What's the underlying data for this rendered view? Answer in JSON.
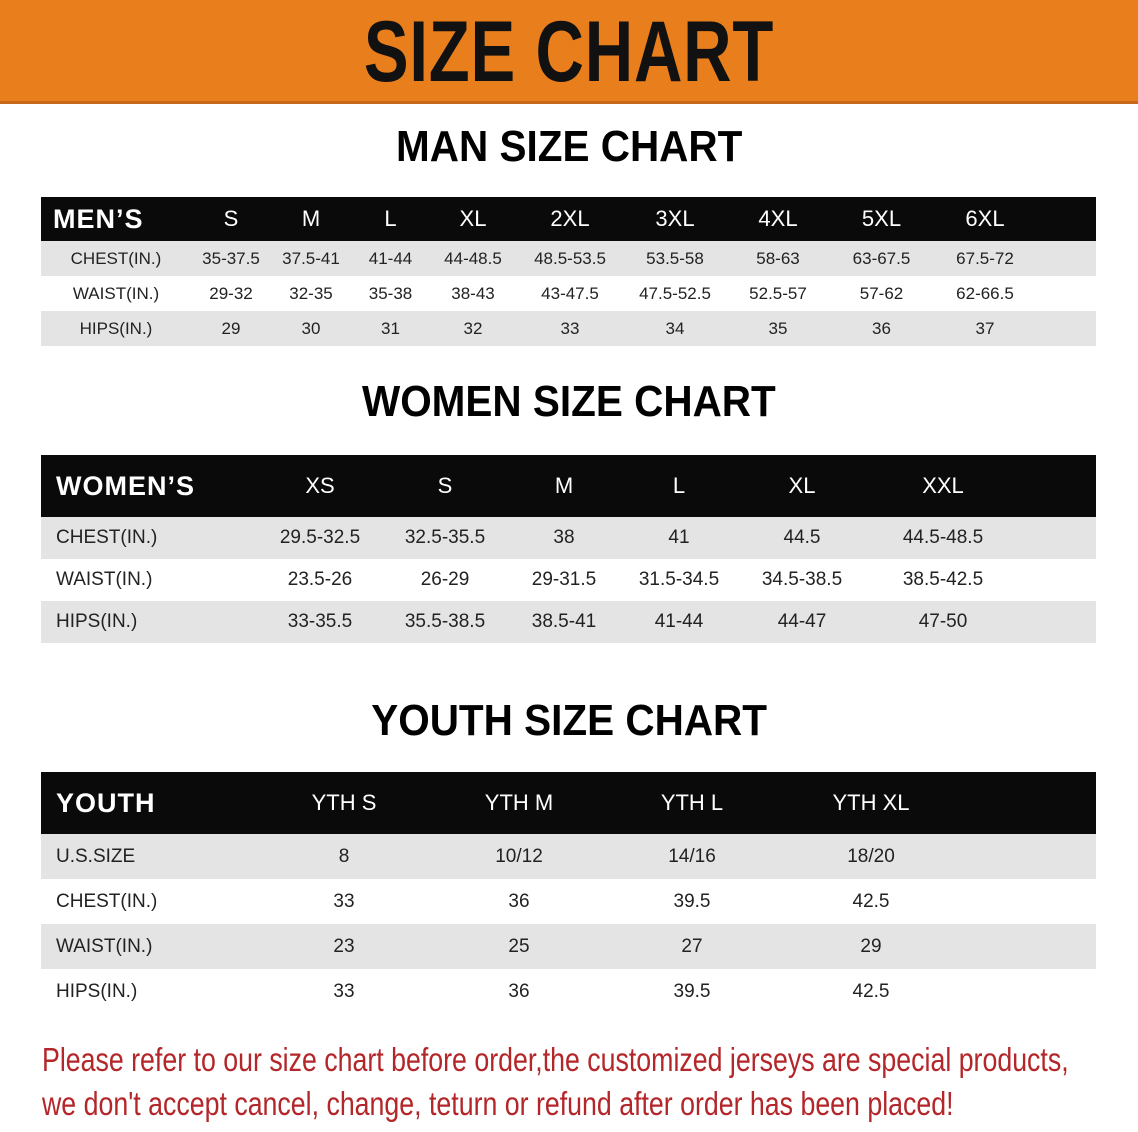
{
  "banner_title": "SIZE CHART",
  "colors": {
    "banner": "#e97e1c",
    "header_row": "#0a0a0a",
    "stripe": "#e4e4e4",
    "notice_text": "#b3262a"
  },
  "men": {
    "title": "MAN SIZE CHART",
    "header_label": "MEN’S",
    "sizes": [
      "S",
      "M",
      "L",
      "XL",
      "2XL",
      "3XL",
      "4XL",
      "5XL",
      "6XL"
    ],
    "rows": [
      {
        "label": "CHEST(IN.)",
        "values": [
          "35-37.5",
          "37.5-41",
          "41-44",
          "44-48.5",
          "48.5-53.5",
          "53.5-58",
          "58-63",
          "63-67.5",
          "67.5-72"
        ]
      },
      {
        "label": "WAIST(IN.)",
        "values": [
          "29-32",
          "32-35",
          "35-38",
          "38-43",
          "43-47.5",
          "47.5-52.5",
          "52.5-57",
          "57-62",
          "62-66.5"
        ]
      },
      {
        "label": "HIPS(IN.)",
        "values": [
          "29",
          "30",
          "31",
          "32",
          "33",
          "34",
          "35",
          "36",
          "37"
        ]
      }
    ]
  },
  "women": {
    "title": "WOMEN SIZE CHART",
    "header_label": "WOMEN’S",
    "sizes": [
      "XS",
      "S",
      "M",
      "L",
      "XL",
      "XXL"
    ],
    "rows": [
      {
        "label": "CHEST(IN.)",
        "values": [
          "29.5-32.5",
          "32.5-35.5",
          "38",
          "41",
          "44.5",
          "44.5-48.5"
        ]
      },
      {
        "label": "WAIST(IN.)",
        "values": [
          "23.5-26",
          "26-29",
          "29-31.5",
          "31.5-34.5",
          "34.5-38.5",
          "38.5-42.5"
        ]
      },
      {
        "label": "HIPS(IN.)",
        "values": [
          "33-35.5",
          "35.5-38.5",
          "38.5-41",
          "41-44",
          "44-47",
          "47-50"
        ]
      }
    ]
  },
  "youth": {
    "title": "YOUTH SIZE CHART",
    "header_label": "YOUTH",
    "sizes": [
      "YTH S",
      "YTH M",
      "YTH L",
      "YTH XL"
    ],
    "rows": [
      {
        "label": "U.S.SIZE",
        "values": [
          "8",
          "10/12",
          "14/16",
          "18/20"
        ]
      },
      {
        "label": "CHEST(IN.)",
        "values": [
          "33",
          "36",
          "39.5",
          "42.5"
        ]
      },
      {
        "label": "WAIST(IN.)",
        "values": [
          "23",
          "25",
          "27",
          "29"
        ]
      },
      {
        "label": "HIPS(IN.)",
        "values": [
          "33",
          "36",
          "39.5",
          "42.5"
        ]
      }
    ]
  },
  "notice": {
    "line1": "Please refer to our size chart before order,the customized jerseys are special products,",
    "line2": "we don't accept cancel, change, teturn or refund after order has been placed!"
  }
}
